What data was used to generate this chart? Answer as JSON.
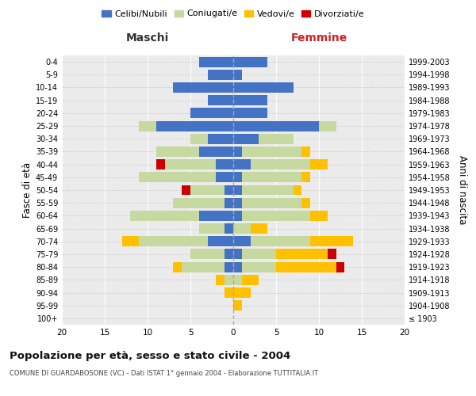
{
  "age_groups": [
    "100+",
    "95-99",
    "90-94",
    "85-89",
    "80-84",
    "75-79",
    "70-74",
    "65-69",
    "60-64",
    "55-59",
    "50-54",
    "45-49",
    "40-44",
    "35-39",
    "30-34",
    "25-29",
    "20-24",
    "15-19",
    "10-14",
    "5-9",
    "0-4"
  ],
  "birth_years": [
    "≤ 1903",
    "1904-1908",
    "1909-1913",
    "1914-1918",
    "1919-1923",
    "1924-1928",
    "1929-1933",
    "1934-1938",
    "1939-1943",
    "1944-1948",
    "1949-1953",
    "1954-1958",
    "1959-1963",
    "1964-1968",
    "1969-1973",
    "1974-1978",
    "1979-1983",
    "1984-1988",
    "1989-1993",
    "1994-1998",
    "1999-2003"
  ],
  "male": {
    "celibi": [
      0,
      0,
      0,
      0,
      1,
      1,
      3,
      1,
      4,
      1,
      1,
      2,
      2,
      4,
      3,
      9,
      5,
      3,
      7,
      3,
      4
    ],
    "coniugati": [
      0,
      0,
      0,
      1,
      5,
      4,
      8,
      3,
      8,
      6,
      4,
      9,
      6,
      5,
      2,
      2,
      0,
      0,
      0,
      0,
      0
    ],
    "vedovi": [
      0,
      0,
      1,
      1,
      1,
      0,
      2,
      0,
      0,
      0,
      0,
      0,
      0,
      0,
      0,
      0,
      0,
      0,
      0,
      0,
      0
    ],
    "divorziati": [
      0,
      0,
      0,
      0,
      0,
      0,
      0,
      0,
      0,
      0,
      1,
      0,
      1,
      0,
      0,
      0,
      0,
      0,
      0,
      0,
      0
    ]
  },
  "female": {
    "nubili": [
      0,
      0,
      0,
      0,
      1,
      1,
      2,
      0,
      1,
      1,
      1,
      1,
      2,
      1,
      3,
      10,
      4,
      4,
      7,
      1,
      4
    ],
    "coniugate": [
      0,
      0,
      0,
      1,
      4,
      4,
      7,
      2,
      8,
      7,
      6,
      7,
      7,
      7,
      4,
      2,
      0,
      0,
      0,
      0,
      0
    ],
    "vedove": [
      0,
      1,
      2,
      2,
      7,
      6,
      5,
      2,
      2,
      1,
      1,
      1,
      2,
      1,
      0,
      0,
      0,
      0,
      0,
      0,
      0
    ],
    "divorziate": [
      0,
      0,
      0,
      0,
      1,
      1,
      0,
      0,
      0,
      0,
      0,
      0,
      0,
      0,
      0,
      0,
      0,
      0,
      0,
      0,
      0
    ]
  },
  "colors": {
    "celibi": "#4472C4",
    "coniugati": "#c5d9a0",
    "vedovi": "#ffc000",
    "divorziati": "#cc0000"
  },
  "title": "Popolazione per età, sesso e stato civile - 2004",
  "subtitle": "COMUNE DI GUARDABOSONE (VC) - Dati ISTAT 1° gennaio 2004 - Elaborazione TUTTITALIA.IT",
  "xlabel_left": "Maschi",
  "xlabel_right": "Femmine",
  "ylabel_left": "Fasce di età",
  "ylabel_right": "Anni di nascita",
  "xlim": 20,
  "legend_labels": [
    "Celibi/Nubili",
    "Coniugati/e",
    "Vedovi/e",
    "Divorziati/e"
  ],
  "bg_color": "#ffffff",
  "plot_bg": "#ebebeb"
}
